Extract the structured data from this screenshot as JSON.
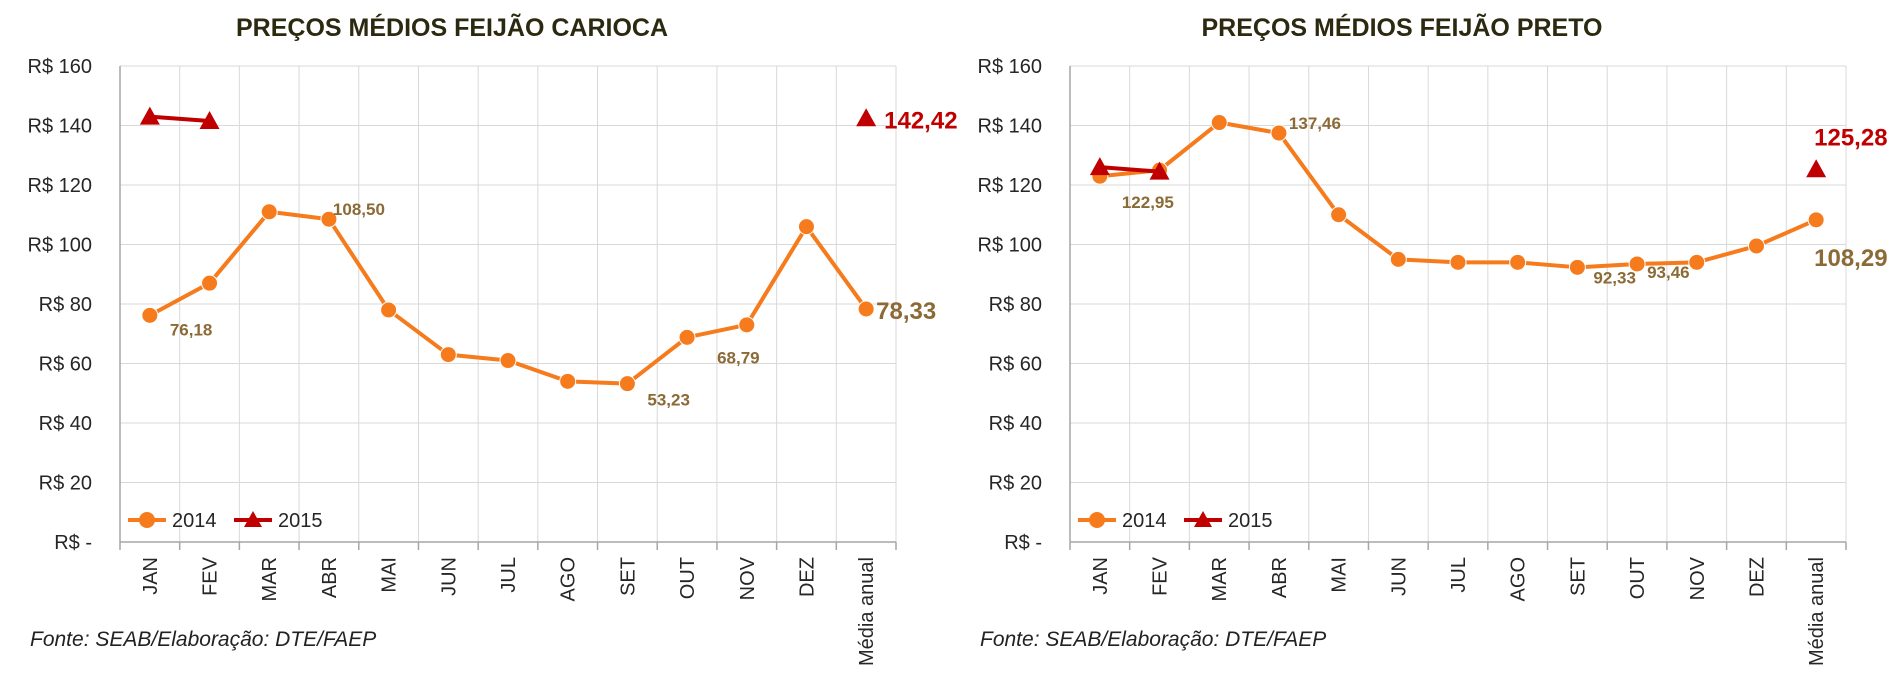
{
  "chart_data": [
    {
      "type": "line",
      "title": "PREÇOS MÉDIOS FEIJÃO CARIOCA",
      "source": "Fonte: SEAB/Elaboração: DTE/FAEP",
      "categories": [
        "JAN",
        "FEV",
        "MAR",
        "ABR",
        "MAI",
        "JUN",
        "JUL",
        "AGO",
        "SET",
        "OUT",
        "NOV",
        "DEZ",
        "Média anual"
      ],
      "y_ticks": [
        0,
        20,
        40,
        60,
        80,
        100,
        120,
        140,
        160
      ],
      "y_tick_labels": [
        "R$ -",
        "R$ 20",
        "R$ 40",
        "R$ 60",
        "R$ 80",
        "R$ 100",
        "R$ 120",
        "R$ 140",
        "R$ 160"
      ],
      "ylim": [
        0,
        160
      ],
      "grid": true,
      "legend_position": "bottom-left",
      "series": [
        {
          "name": "2014",
          "color": "#f57b1c",
          "marker": "circle",
          "values": [
            76.18,
            87,
            111,
            108.5,
            78,
            63,
            61,
            54,
            53.23,
            68.79,
            73,
            106,
            78.33
          ]
        },
        {
          "name": "2015",
          "color": "#c00000",
          "marker": "triangle",
          "values": [
            143,
            141.5,
            null,
            null,
            null,
            null,
            null,
            null,
            null,
            null,
            null,
            null,
            142.42
          ]
        }
      ],
      "data_labels": [
        {
          "series": 0,
          "index": 0,
          "text": "76,18"
        },
        {
          "series": 0,
          "index": 3,
          "text": "108,50"
        },
        {
          "series": 0,
          "index": 8,
          "text": "53,23"
        },
        {
          "series": 0,
          "index": 9,
          "text": "68,79"
        },
        {
          "series": 0,
          "index": 12,
          "text": "78,33",
          "big": true
        },
        {
          "series": 1,
          "index": 12,
          "text": "142,42",
          "big": true
        }
      ]
    },
    {
      "type": "line",
      "title": "PREÇOS MÉDIOS FEIJÃO PRETO",
      "source": "Fonte: SEAB/Elaboração: DTE/FAEP",
      "categories": [
        "JAN",
        "FEV",
        "MAR",
        "ABR",
        "MAI",
        "JUN",
        "JUL",
        "AGO",
        "SET",
        "OUT",
        "NOV",
        "DEZ",
        "Média anual"
      ],
      "y_ticks": [
        0,
        20,
        40,
        60,
        80,
        100,
        120,
        140,
        160
      ],
      "y_tick_labels": [
        "R$ -",
        "R$ 20",
        "R$ 40",
        "R$ 60",
        "R$ 80",
        "R$ 100",
        "R$ 120",
        "R$ 140",
        "R$ 160"
      ],
      "ylim": [
        0,
        160
      ],
      "grid": true,
      "legend_position": "bottom-left",
      "series": [
        {
          "name": "2014",
          "color": "#f57b1c",
          "marker": "circle",
          "values": [
            122.95,
            125,
            141,
            137.46,
            110,
            95,
            94,
            94,
            92.33,
            93.46,
            94,
            99.5,
            108.29
          ]
        },
        {
          "name": "2015",
          "color": "#c00000",
          "marker": "triangle",
          "values": [
            126,
            124.5,
            null,
            null,
            null,
            null,
            null,
            null,
            null,
            null,
            null,
            null,
            125.28
          ]
        }
      ],
      "data_labels": [
        {
          "series": 0,
          "index": 0,
          "text": "122,95"
        },
        {
          "series": 0,
          "index": 3,
          "text": "137,46"
        },
        {
          "series": 0,
          "index": 8,
          "text": "92,33"
        },
        {
          "series": 0,
          "index": 9,
          "text": "93,46"
        },
        {
          "series": 0,
          "index": 12,
          "text": "108,29",
          "big": true
        },
        {
          "series": 1,
          "index": 12,
          "text": "125,28",
          "big": true
        }
      ]
    }
  ]
}
